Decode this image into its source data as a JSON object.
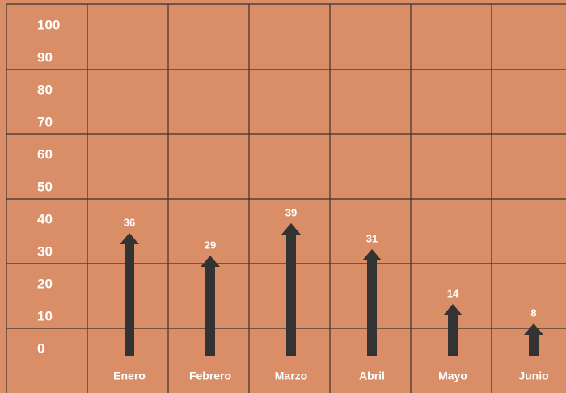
{
  "chart_data": {
    "type": "bar",
    "categories": [
      "Enero",
      "Febrero",
      "Marzo",
      "Abril",
      "Mayo",
      "Junio"
    ],
    "values": [
      36,
      29,
      39,
      31,
      14,
      8
    ],
    "color": "#333333",
    "ylim": [
      0,
      100
    ],
    "yticks": [
      0,
      10,
      20,
      30,
      40,
      50,
      60,
      70,
      80,
      90,
      100
    ]
  }
}
